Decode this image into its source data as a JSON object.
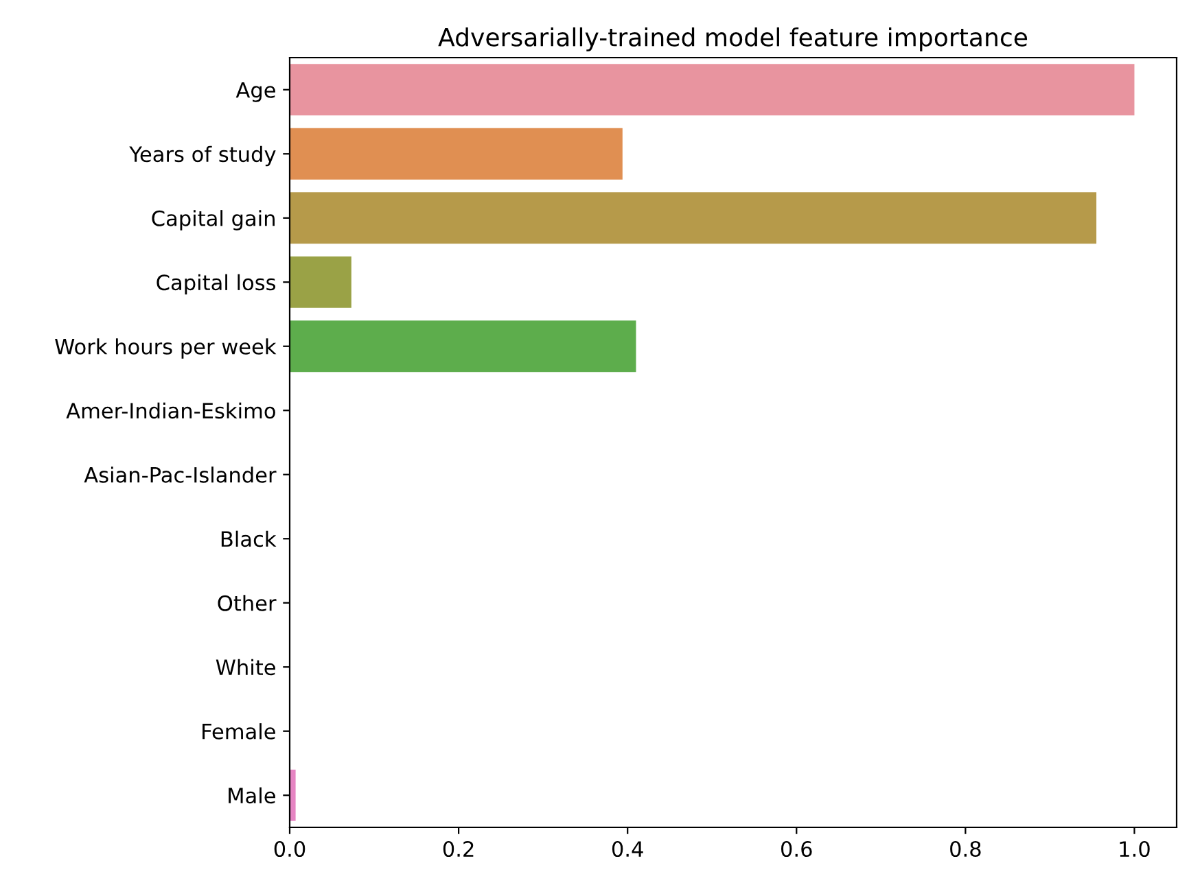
{
  "chart_data": {
    "type": "bar",
    "orientation": "horizontal",
    "title": "Adversarially-trained model feature importance",
    "categories": [
      "Age",
      "Years of study",
      "Capital gain",
      "Capital loss",
      "Work hours per week",
      "Amer-Indian-Eskimo",
      "Asian-Pac-Islander",
      "Black",
      "Other",
      "White",
      "Female",
      "Male"
    ],
    "values": [
      1.0,
      0.394,
      0.955,
      0.073,
      0.41,
      0,
      0,
      0,
      0,
      0,
      0,
      0.007
    ],
    "colors": [
      "#e8949f",
      "#e08f52",
      "#b69a4a",
      "#9aa246",
      "#5dad4c",
      "#50ae8c",
      "#51a9b7",
      "#57a5c4",
      "#8d9ed3",
      "#b092d6",
      "#d58bc9",
      "#e685c3"
    ],
    "xlim": [
      0,
      1.05
    ],
    "xticks": [
      {
        "value": 0,
        "label": "0.0"
      },
      0.2,
      0.4,
      0.6,
      0.8,
      {
        "value": 1,
        "label": "1.0"
      }
    ],
    "grid": false
  }
}
